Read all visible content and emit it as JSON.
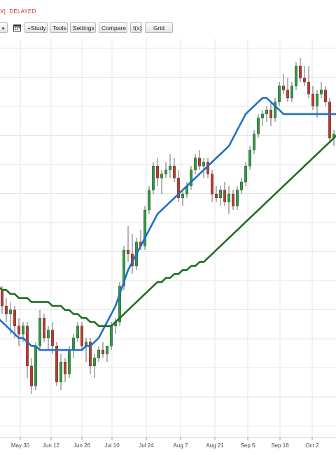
{
  "header": {
    "symbol_tail": "X]",
    "status": "DELAYED"
  },
  "toolbar": {
    "interval_select": "",
    "calendar_icon": "calendar-icon",
    "study_label": "+Study",
    "tools_label": "Tools",
    "settings_label": "Settings",
    "compare_label": "Compare",
    "fx_label": "f(x)",
    "grid_label": "Grid"
  },
  "colors": {
    "up": "#2e9c3f",
    "down": "#c0392b",
    "ma_short": "#1f6fc9",
    "ma_long": "#1f6e26",
    "grid": "#e6e6e6",
    "status": "#c0392b"
  },
  "chart_data": {
    "type": "candlestick",
    "x_tick_labels": [
      "May 30",
      "Jun 12",
      "Jun 26",
      "Jul 10",
      "Jul 24",
      "Aug 7",
      "Aug 21",
      "Sep 5",
      "Sep 18",
      "Oct 2"
    ],
    "y_range": [
      0,
      100
    ],
    "grid": true,
    "series": [
      {
        "type": "candlestick",
        "values": [
          [
            55,
            58,
            53,
            56
          ],
          [
            56,
            57,
            50,
            52
          ],
          [
            52,
            54,
            48,
            50
          ],
          [
            50,
            53,
            45,
            51
          ],
          [
            51,
            52,
            44,
            47
          ],
          [
            47,
            49,
            42,
            45
          ],
          [
            45,
            48,
            43,
            47
          ],
          [
            47,
            48,
            34,
            37
          ],
          [
            37,
            39,
            30,
            32
          ],
          [
            32,
            43,
            31,
            42
          ],
          [
            42,
            51,
            41,
            49
          ],
          [
            49,
            50,
            43,
            44
          ],
          [
            44,
            47,
            41,
            46
          ],
          [
            46,
            48,
            40,
            42
          ],
          [
            42,
            43,
            32,
            33
          ],
          [
            33,
            40,
            31,
            38
          ],
          [
            38,
            39,
            33,
            35
          ],
          [
            35,
            42,
            34,
            41
          ],
          [
            41,
            45,
            39,
            44
          ],
          [
            44,
            48,
            43,
            47
          ],
          [
            47,
            48,
            41,
            42
          ],
          [
            42,
            44,
            38,
            43
          ],
          [
            43,
            44,
            35,
            37
          ],
          [
            37,
            40,
            34,
            39
          ],
          [
            39,
            42,
            38,
            41
          ],
          [
            41,
            43,
            39,
            40
          ],
          [
            40,
            42,
            38,
            42
          ],
          [
            42,
            48,
            41,
            47
          ],
          [
            47,
            49,
            45,
            48
          ],
          [
            48,
            58,
            47,
            57
          ],
          [
            57,
            67,
            56,
            66
          ],
          [
            66,
            72,
            63,
            65
          ],
          [
            65,
            70,
            60,
            62
          ],
          [
            62,
            69,
            61,
            68
          ],
          [
            68,
            71,
            66,
            67
          ],
          [
            67,
            77,
            66,
            76
          ],
          [
            76,
            82,
            75,
            81
          ],
          [
            81,
            88,
            80,
            87
          ],
          [
            87,
            89,
            82,
            84
          ],
          [
            84,
            86,
            80,
            85
          ],
          [
            85,
            88,
            84,
            86
          ],
          [
            86,
            90,
            84,
            87
          ],
          [
            87,
            89,
            83,
            84
          ],
          [
            84,
            86,
            78,
            79
          ],
          [
            79,
            81,
            77,
            80
          ],
          [
            80,
            83,
            79,
            82
          ],
          [
            82,
            87,
            81,
            86
          ],
          [
            86,
            90,
            85,
            89
          ],
          [
            89,
            91,
            86,
            87
          ],
          [
            87,
            89,
            84,
            88
          ],
          [
            88,
            89,
            84,
            85
          ],
          [
            85,
            86,
            78,
            80
          ],
          [
            80,
            82,
            78,
            79
          ],
          [
            79,
            82,
            77,
            81
          ],
          [
            81,
            83,
            77,
            78
          ],
          [
            78,
            82,
            75,
            80
          ],
          [
            80,
            81,
            76,
            77
          ],
          [
            77,
            82,
            76,
            81
          ],
          [
            81,
            84,
            80,
            83
          ],
          [
            83,
            88,
            82,
            87
          ],
          [
            87,
            92,
            86,
            91
          ],
          [
            91,
            96,
            90,
            95
          ],
          [
            95,
            100,
            94,
            99
          ],
          [
            99,
            101,
            97,
            100
          ],
          [
            100,
            102,
            98,
            101
          ],
          [
            101,
            103,
            97,
            99
          ],
          [
            99,
            104,
            98,
            103
          ],
          [
            103,
            108,
            102,
            107
          ],
          [
            107,
            110,
            105,
            106
          ],
          [
            106,
            109,
            103,
            104
          ],
          [
            104,
            108,
            103,
            107
          ],
          [
            107,
            113,
            106,
            112
          ],
          [
            112,
            114,
            108,
            109
          ],
          [
            109,
            112,
            107,
            108
          ],
          [
            108,
            112,
            104,
            105
          ],
          [
            105,
            107,
            101,
            102
          ],
          [
            102,
            106,
            99,
            105
          ],
          [
            105,
            108,
            104,
            106
          ],
          [
            106,
            107,
            102,
            103
          ],
          [
            103,
            104,
            93,
            94
          ],
          [
            94,
            96,
            92,
            95
          ],
          [
            95,
            97,
            94,
            96
          ]
        ]
      },
      {
        "name": "",
        "type": "line",
        "values": [
          49,
          48,
          47,
          46,
          45,
          44,
          44,
          43,
          42,
          42,
          41,
          41,
          41,
          41,
          41,
          41,
          41,
          41,
          41,
          41,
          41,
          42,
          42,
          43,
          44,
          46,
          48,
          50,
          52,
          55,
          58,
          61,
          63,
          65,
          67,
          69,
          71,
          73,
          75,
          76,
          77,
          78,
          79,
          80,
          81,
          82,
          83,
          84,
          85,
          86,
          87,
          88,
          89,
          90,
          91,
          92,
          94,
          96,
          98,
          100,
          101,
          102,
          103,
          104,
          104,
          103,
          102,
          101,
          100,
          100,
          100,
          100,
          100,
          100,
          100,
          100,
          100,
          100,
          100,
          100,
          100,
          100
        ]
      },
      {
        "name": "",
        "type": "line",
        "values": [
          57,
          56,
          56,
          55,
          55,
          54,
          54,
          54,
          53,
          53,
          53,
          53,
          53,
          52,
          52,
          52,
          51,
          51,
          50,
          50,
          49,
          49,
          48,
          48,
          47,
          47,
          47,
          47,
          48,
          49,
          50,
          51,
          52,
          53,
          54,
          55,
          56,
          57,
          58,
          58,
          59,
          59,
          60,
          60,
          61,
          61,
          62,
          62,
          63,
          63,
          64,
          65,
          66,
          67,
          68,
          69,
          70,
          71,
          72,
          73,
          74,
          75,
          76,
          77,
          78,
          79,
          80,
          81,
          82,
          83,
          84,
          85,
          86,
          87,
          88,
          89,
          90,
          91,
          92,
          93,
          94,
          95
        ]
      }
    ]
  }
}
